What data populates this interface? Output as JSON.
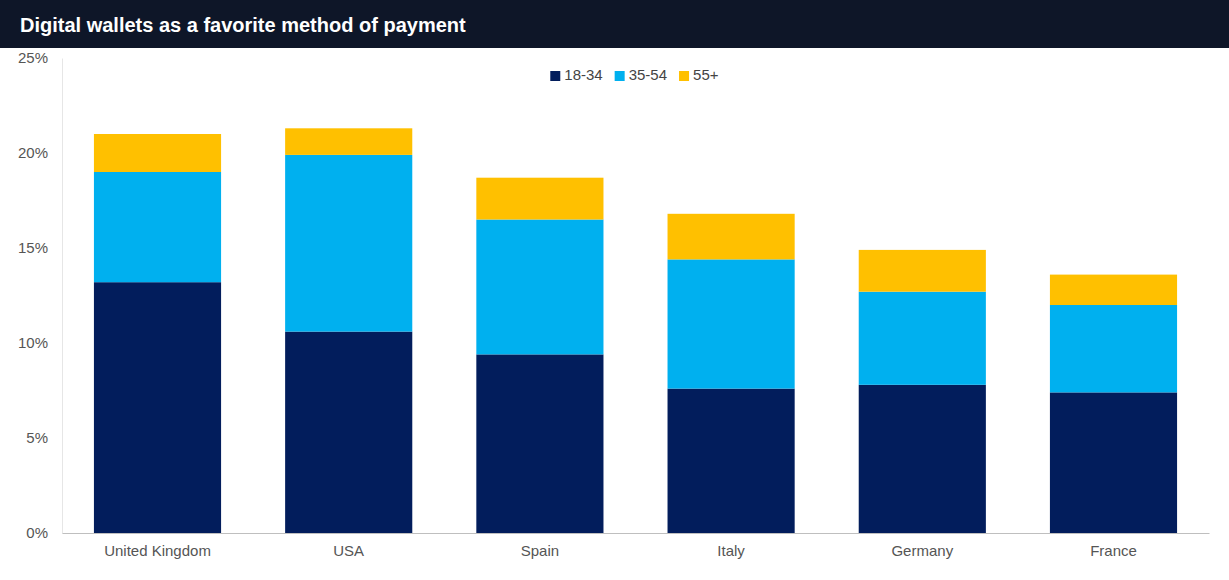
{
  "chart_data": {
    "type": "bar",
    "title": "Digital wallets as a favorite method of payment",
    "categories": [
      "United Kingdom",
      "USA",
      "Spain",
      "Italy",
      "Germany",
      "France"
    ],
    "series": [
      {
        "name": "18-34",
        "color": "#021d5c",
        "values": [
          13.2,
          10.6,
          9.4,
          7.6,
          7.8,
          7.4
        ]
      },
      {
        "name": "35-54",
        "color": "#00b0ef",
        "values": [
          5.8,
          9.3,
          7.1,
          6.8,
          4.9,
          4.6
        ]
      },
      {
        "name": "55+",
        "color": "#ffc000",
        "values": [
          2.0,
          1.4,
          2.2,
          2.4,
          2.2,
          1.6
        ]
      }
    ],
    "stacked": true,
    "legend": "top",
    "grid": false,
    "ylim": [
      0,
      25
    ],
    "yticks": [
      {
        "value": 0,
        "label": "0%"
      },
      {
        "value": 5,
        "label": "5%"
      },
      {
        "value": 10,
        "label": "10%"
      },
      {
        "value": 15,
        "label": "15%"
      },
      {
        "value": 20,
        "label": "20%"
      },
      {
        "value": 25,
        "label": "25%"
      }
    ]
  }
}
